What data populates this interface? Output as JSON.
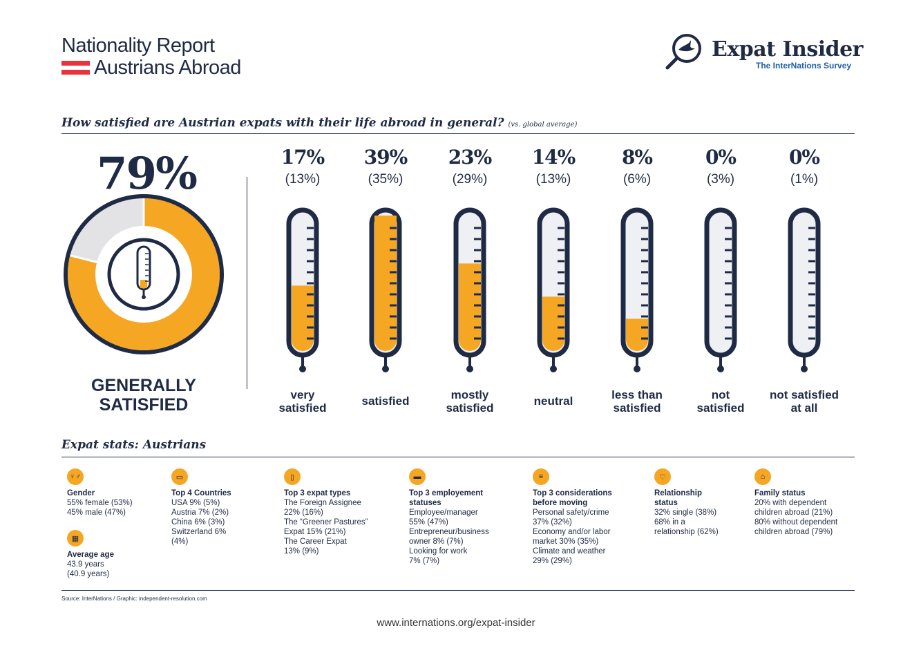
{
  "header": {
    "line1": "Nationality Report",
    "line2": "Austrians Abroad",
    "flag_colors": [
      "#e8333a",
      "#ffffff",
      "#e8333a"
    ]
  },
  "logo": {
    "title": "Expat Insider",
    "subtitle": "The InterNations Survey"
  },
  "question": {
    "text": "How satisfied are Austrian expats with their life abroad in general?",
    "note": "(vs. global average)"
  },
  "colors": {
    "navy": "#1f2a44",
    "orange": "#f5a623",
    "gray": "#e3e3e6"
  },
  "overall": {
    "value_label": "79%",
    "value": 79,
    "label_line1": "GENERALLY",
    "label_line2": "SATISFIED"
  },
  "chart_data": {
    "type": "bar",
    "title": "How satisfied are Austrian expats with their life abroad in general?",
    "categories": [
      "very satisfied",
      "satisfied",
      "mostly satisfied",
      "neutral",
      "less than satisfied",
      "not satisfied",
      "not satisfied at all"
    ],
    "series": [
      {
        "name": "Austrians",
        "values": [
          17,
          39,
          23,
          14,
          8,
          0,
          0
        ]
      },
      {
        "name": "global average",
        "values": [
          13,
          35,
          29,
          13,
          6,
          3,
          1
        ]
      }
    ],
    "ylim": [
      0,
      100
    ],
    "items": [
      {
        "pct": "17%",
        "avg": "(13%)",
        "line1": "very",
        "line2": "satisfied"
      },
      {
        "pct": "39%",
        "avg": "(35%)",
        "line1": "satisfied",
        "line2": ""
      },
      {
        "pct": "23%",
        "avg": "(29%)",
        "line1": "mostly",
        "line2": "satisfied"
      },
      {
        "pct": "14%",
        "avg": "(13%)",
        "line1": "neutral",
        "line2": ""
      },
      {
        "pct": "8%",
        "avg": "(6%)",
        "line1": "less than",
        "line2": "satisfied"
      },
      {
        "pct": "0%",
        "avg": "(3%)",
        "line1": "not",
        "line2": "satisfied"
      },
      {
        "pct": "0%",
        "avg": "(1%)",
        "line1": "not satisfied",
        "line2": "at all"
      }
    ]
  },
  "stats": {
    "title": "Expat stats: Austrians",
    "columns": [
      {
        "icon": "gender-icon",
        "heading": "Gender",
        "lines": [
          "55% female (53%)",
          "45% male (47%)"
        ],
        "extra": {
          "icon": "cake-icon",
          "heading": "Average age",
          "lines": [
            "43.9 years",
            "(40.9 years)"
          ]
        }
      },
      {
        "icon": "map-icon",
        "heading": "Top 4 Countries",
        "lines": [
          "USA 9% (5%)",
          "Austria 7% (2%)",
          "China 6% (3%)",
          "Switzerland 6%",
          "(4%)"
        ]
      },
      {
        "icon": "id-card-icon",
        "heading": "Top 3 expat types",
        "lines": [
          "The Foreign Assignee",
          "22% (16%)",
          "The “Greener Pastures”",
          "Expat 15% (21%)",
          "The Career Expat",
          "13% (9%)"
        ]
      },
      {
        "icon": "briefcase-icon",
        "heading": "Top 3 employement statuses",
        "heading_lines": [
          "Top 3 employement",
          "statuses"
        ],
        "lines": [
          "Employee/manager",
          "55% (47%)",
          "Entrepreneur/business",
          "owner 8% (7%)",
          "Looking for work",
          "7% (7%)"
        ]
      },
      {
        "icon": "list-icon",
        "heading": "Top 3 considerations before moving",
        "heading_lines": [
          "Top 3 considerations",
          "before moving"
        ],
        "lines": [
          "Personal safety/crime",
          "37% (32%)",
          "Economy and/or labor",
          "market 30% (35%)",
          "Climate and weather",
          "29% (29%)"
        ]
      },
      {
        "icon": "heart-icon",
        "heading": "Relationship status",
        "heading_lines": [
          "Relationship",
          "status"
        ],
        "lines": [
          "32% single (38%)",
          "68% in a",
          "relationship (62%)"
        ]
      },
      {
        "icon": "family-icon",
        "heading": "Family status",
        "lines": [
          "20% with dependent",
          "children abroad (21%)",
          "80% without dependent",
          "children abroad (79%)"
        ]
      }
    ]
  },
  "source": "Source: InterNations / Graphic: independent-resolution.com",
  "url": "www.internations.org/expat-insider"
}
